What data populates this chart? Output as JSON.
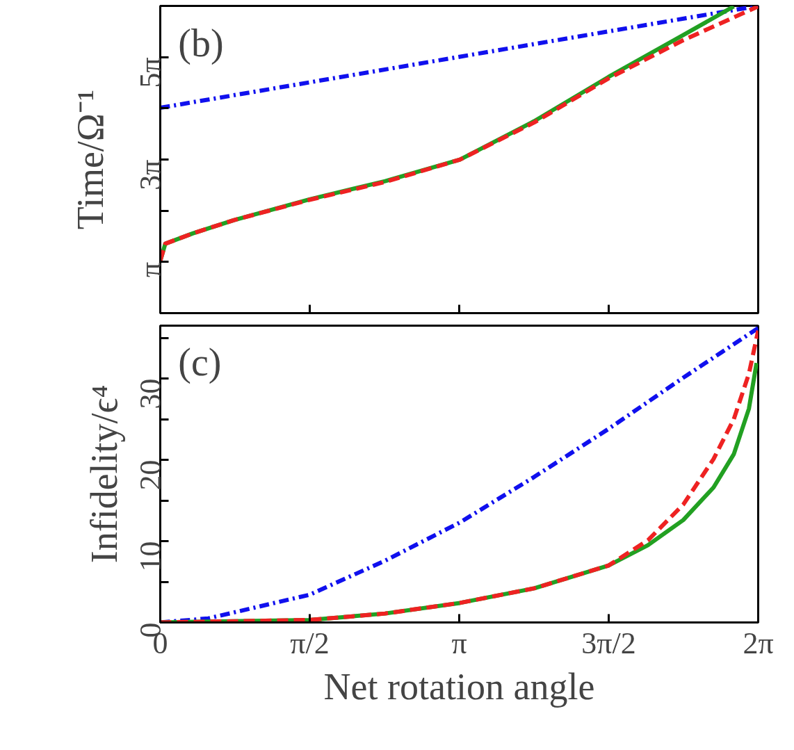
{
  "chart_data": [
    {
      "type": "line",
      "ylabel": "Time/Ω⁻¹",
      "annotations": [
        "(b)"
      ],
      "tick_labels": "y",
      "xlim": [
        0,
        6.2832
      ],
      "ylim": [
        0,
        18.85
      ],
      "xticks": [
        {
          "value": 0,
          "label": null
        },
        {
          "value": 1.5708,
          "label": null
        },
        {
          "value": 3.1416,
          "label": null
        },
        {
          "value": 4.7124,
          "label": null
        },
        {
          "value": 6.2832,
          "label": null
        }
      ],
      "yticks": [
        {
          "value": 3.1416,
          "label": "π"
        },
        {
          "value": 6.2832,
          "label": null
        },
        {
          "value": 9.4248,
          "label": "3π"
        },
        {
          "value": 12.5664,
          "label": null
        },
        {
          "value": 15.708,
          "label": "5π"
        }
      ],
      "grid": false,
      "series": [
        {
          "color": "#1010ee",
          "line_style": "dashdot",
          "x": [
            0,
            6.283
          ],
          "values": [
            12.6,
            18.85
          ]
        },
        {
          "color": "#22a022",
          "line_style": "solid",
          "x": [
            0,
            0.053,
            0.345,
            0.77,
            1.567,
            2.363,
            3.149,
            3.93,
            4.71,
            5.496,
            6.027
          ],
          "values": [
            3.2,
            4.26,
            4.9,
            5.7,
            6.98,
            8.1,
            9.42,
            11.78,
            14.49,
            17.06,
            18.82
          ]
        },
        {
          "color": "#ee2222",
          "line_style": "dashed",
          "x": [
            0,
            0.053,
            0.345,
            0.77,
            1.567,
            2.363,
            3.149,
            3.93,
            4.71,
            5.496,
            6.283
          ],
          "values": [
            3.2,
            4.26,
            4.9,
            5.7,
            6.95,
            8.05,
            9.42,
            11.7,
            14.4,
            16.75,
            18.82
          ]
        }
      ]
    },
    {
      "type": "line",
      "xlabel": "Net rotation angle",
      "ylabel": "Infidelity/ϵ⁴",
      "annotations": [
        "(c)"
      ],
      "xlim": [
        0,
        6.2832
      ],
      "ylim": [
        0,
        36.5
      ],
      "xticks": [
        {
          "value": 0,
          "label": "0"
        },
        {
          "value": 1.5708,
          "label": "π/2"
        },
        {
          "value": 3.1416,
          "label": "π"
        },
        {
          "value": 4.7124,
          "label": "3π/2"
        },
        {
          "value": 6.2832,
          "label": "2π"
        }
      ],
      "yticks": [
        0,
        {
          "value": 5,
          "label": null
        },
        10,
        {
          "value": 15,
          "label": null
        },
        20,
        {
          "value": 25,
          "label": null
        },
        30,
        {
          "value": 35,
          "label": null
        }
      ],
      "grid": false,
      "series": [
        {
          "color": "#1010ee",
          "line_style": "dashdot",
          "x": [
            0,
            0.505,
            1.567,
            2.363,
            3.149,
            3.93,
            4.71,
            5.496,
            6.283
          ],
          "values": [
            0,
            0.5,
            3.4,
            7.6,
            12.3,
            17.9,
            23.8,
            30.1,
            36.2
          ]
        },
        {
          "color": "#22a022",
          "line_style": "solid",
          "x": [
            0,
            0.505,
            1.567,
            2.363,
            3.149,
            3.93,
            4.71,
            5.124,
            5.496,
            5.814,
            6.027,
            6.186,
            6.266
          ],
          "values": [
            0,
            0.1,
            0.3,
            1.1,
            2.4,
            4.2,
            7.0,
            9.5,
            12.6,
            16.6,
            20.7,
            26.3,
            31.9
          ]
        },
        {
          "color": "#ee2222",
          "line_style": "dashed",
          "x": [
            0,
            0.505,
            1.567,
            2.363,
            3.149,
            3.93,
            4.71,
            5.124,
            5.496,
            5.814,
            6.027,
            6.186,
            6.283
          ],
          "values": [
            0,
            0.1,
            0.3,
            1.1,
            2.4,
            4.2,
            7.0,
            10.1,
            14.5,
            20.1,
            25.0,
            30.6,
            35.9
          ]
        }
      ]
    }
  ]
}
